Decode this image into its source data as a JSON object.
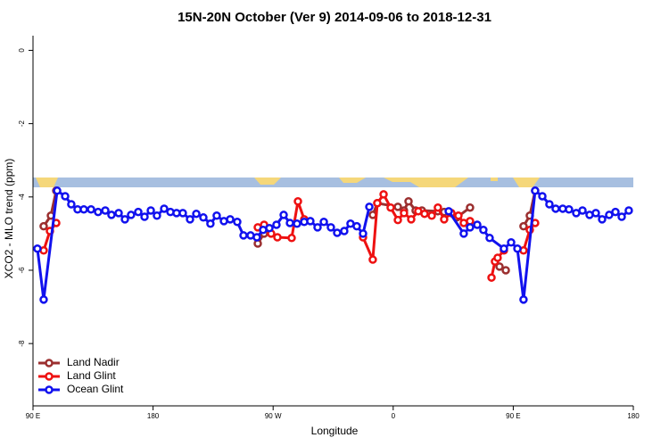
{
  "chart_data": {
    "type": "line",
    "title": "15N-20N October (Ver 9)   2014-09-06 to 2018-12-31",
    "x_label": "Longitude",
    "y_label": "XCO2 - MLO trend (ppm)",
    "xlim": [
      90,
      540
    ],
    "ylim": [
      -9.7,
      0.4
    ],
    "xticks": [
      {
        "value": 90,
        "label": "90 E"
      },
      180,
      {
        "value": 270,
        "label": "90 W"
      },
      {
        "value": 360,
        "label": "0"
      },
      {
        "value": 450,
        "label": "90 E"
      },
      {
        "value": 540,
        "label": "180"
      }
    ],
    "yticks": [
      0,
      -2,
      -4,
      -6,
      -8
    ],
    "legend": "bottom-left",
    "series": [
      {
        "name": "Land Nadir",
        "color": "#9b2f2f",
        "x": [
          98,
          103.4,
          107.4,
          200,
          258.5,
          263.2,
          320,
          344.7,
          348.1,
          363.5,
          368.1,
          371.5,
          376.8,
          381.5,
          393.5,
          398.2,
          407.6,
          417.6,
          430,
          439.7,
          444.4,
          450,
          457.7,
          462.4,
          466.4
        ],
        "values": [
          -4.8,
          -4.51,
          -3.83,
          null,
          -5.27,
          -5.0,
          null,
          -4.49,
          -4.17,
          -4.27,
          -4.37,
          -4.12,
          -4.37,
          -4.37,
          -4.39,
          -4.41,
          -4.56,
          -4.29,
          null,
          -5.9,
          -6.0,
          null,
          -4.8,
          -4.51,
          -3.83
        ]
      },
      {
        "name": "Land Glint",
        "color": "#ee1111",
        "x": [
          98,
          102.7,
          107.4,
          200,
          258.5,
          263.2,
          268.5,
          273.2,
          283.9,
          288.6,
          293.3,
          320,
          337.4,
          344.7,
          348.1,
          352.8,
          358.1,
          363.5,
          368.1,
          373.5,
          378.8,
          383.5,
          388.9,
          393.5,
          398.2,
          403.6,
          408.9,
          412.9,
          417.6,
          430,
          433.7,
          436.3,
          438.3,
          443,
          450,
          457.7,
          462.4,
          466.4
        ],
        "values": [
          -5.46,
          -4.93,
          -4.71,
          null,
          -4.83,
          -4.76,
          -5.0,
          -5.1,
          -5.12,
          -4.12,
          -4.61,
          null,
          -5.1,
          -5.71,
          -4.17,
          -3.93,
          -4.29,
          -4.63,
          -4.44,
          -4.61,
          -4.39,
          -4.46,
          -4.51,
          -4.29,
          -4.61,
          -4.44,
          -4.51,
          -4.71,
          -4.66,
          null,
          -6.2,
          -5.76,
          -5.66,
          -5.46,
          null,
          -5.46,
          -4.9,
          -4.71
        ]
      },
      {
        "name": "Ocean Glint",
        "color": "#1111ee",
        "x": [
          93.3,
          98,
          108.1,
          114.1,
          118.7,
          123.4,
          128.1,
          133.5,
          138.8,
          144.2,
          148.8,
          154.2,
          158.9,
          163.5,
          168.9,
          173.6,
          178.3,
          182.9,
          188.3,
          193,
          197.6,
          202.3,
          207.7,
          212.4,
          217.7,
          223,
          227.7,
          233.1,
          237.8,
          243.1,
          247.8,
          253.1,
          257.8,
          262.5,
          267.2,
          272.5,
          277.9,
          282.6,
          287.9,
          293.3,
          297.9,
          303.3,
          308,
          313.3,
          318,
          323.3,
          328,
          332.7,
          337.4,
          342.1,
          370,
          401.6,
          412.9,
          417.6,
          423,
          427.6,
          432.3,
          443,
          448.4,
          453.1,
          457.7,
          466.4,
          471.8,
          477.1,
          481.8,
          487.1,
          491.8,
          497.2,
          501.9,
          507.2,
          511.9,
          516.6,
          521.9,
          526.6,
          531.3,
          536.6
        ],
        "values": [
          -5.41,
          -6.8,
          -3.83,
          -3.98,
          -4.2,
          -4.34,
          -4.34,
          -4.34,
          -4.41,
          -4.37,
          -4.49,
          -4.44,
          -4.61,
          -4.49,
          -4.41,
          -4.54,
          -4.37,
          -4.51,
          -4.32,
          -4.41,
          -4.44,
          -4.44,
          -4.61,
          -4.46,
          -4.56,
          -4.73,
          -4.51,
          -4.66,
          -4.61,
          -4.68,
          -5.05,
          -5.05,
          -5.1,
          -4.9,
          -4.85,
          -4.76,
          -4.49,
          -4.71,
          -4.73,
          -4.68,
          -4.66,
          -4.83,
          -4.68,
          -4.83,
          -4.98,
          -4.93,
          -4.73,
          -4.8,
          -5.0,
          -4.27,
          null,
          -4.39,
          -5.0,
          -4.83,
          -4.76,
          -4.9,
          -5.12,
          -5.41,
          -5.24,
          -5.41,
          -6.8,
          -3.83,
          -3.98,
          -4.2,
          -4.32,
          -4.32,
          -4.34,
          -4.44,
          -4.37,
          -4.49,
          -4.44,
          -4.61,
          -4.49,
          -4.41,
          -4.54,
          -4.37
        ]
      }
    ]
  }
}
